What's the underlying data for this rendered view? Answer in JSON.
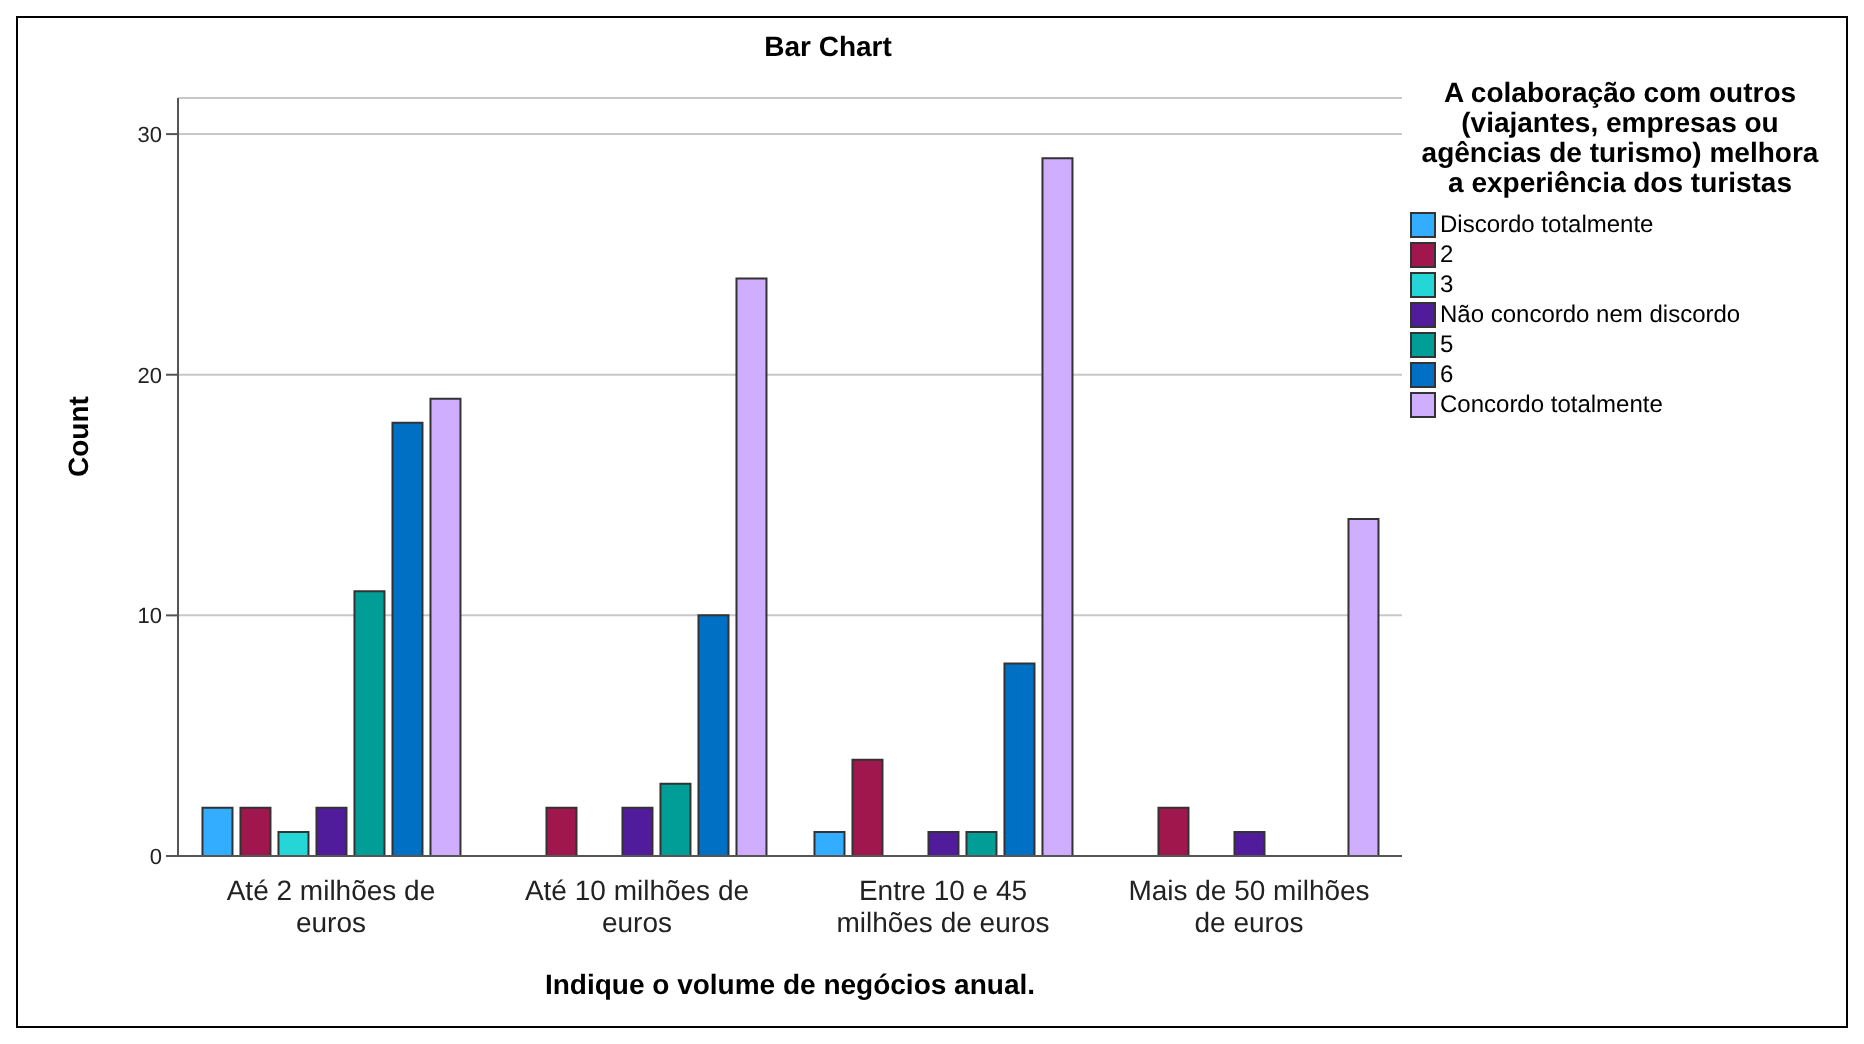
{
  "chart_data": {
    "type": "bar",
    "title": "Bar Chart",
    "xlabel": "Indique o volume de negócios anual.",
    "ylabel": "Count",
    "legend_title": "A colaboração com outros (viajantes, empresas ou agências de turismo) melhora a experiência dos turistas",
    "categories": [
      "Até 2 milhões de euros",
      "Até 10 milhões de euros",
      "Entre 10 e 45 milhões de euros",
      "Mais de 50 milhões de euros"
    ],
    "series": [
      {
        "name": "Discordo totalmente",
        "color": "#33adff",
        "values": [
          2,
          null,
          1,
          null
        ]
      },
      {
        "name": "2",
        "color": "#a0174d",
        "values": [
          2,
          2,
          4,
          2
        ]
      },
      {
        "name": "3",
        "color": "#24d6d6",
        "values": [
          1,
          null,
          null,
          null
        ]
      },
      {
        "name": "Não concordo nem discordo",
        "color": "#511c9c",
        "values": [
          2,
          2,
          1,
          1
        ]
      },
      {
        "name": "5",
        "color": "#009e96",
        "values": [
          11,
          3,
          1,
          null
        ]
      },
      {
        "name": "6",
        "color": "#0070c4",
        "values": [
          18,
          10,
          8,
          null
        ]
      },
      {
        "name": "Concordo totalmente",
        "color": "#cfadff",
        "values": [
          19,
          24,
          29,
          14
        ]
      }
    ],
    "ylim": [
      0,
      31.5
    ],
    "yticks": [
      0,
      10,
      20,
      30
    ],
    "grid": "y",
    "legend": "right"
  }
}
